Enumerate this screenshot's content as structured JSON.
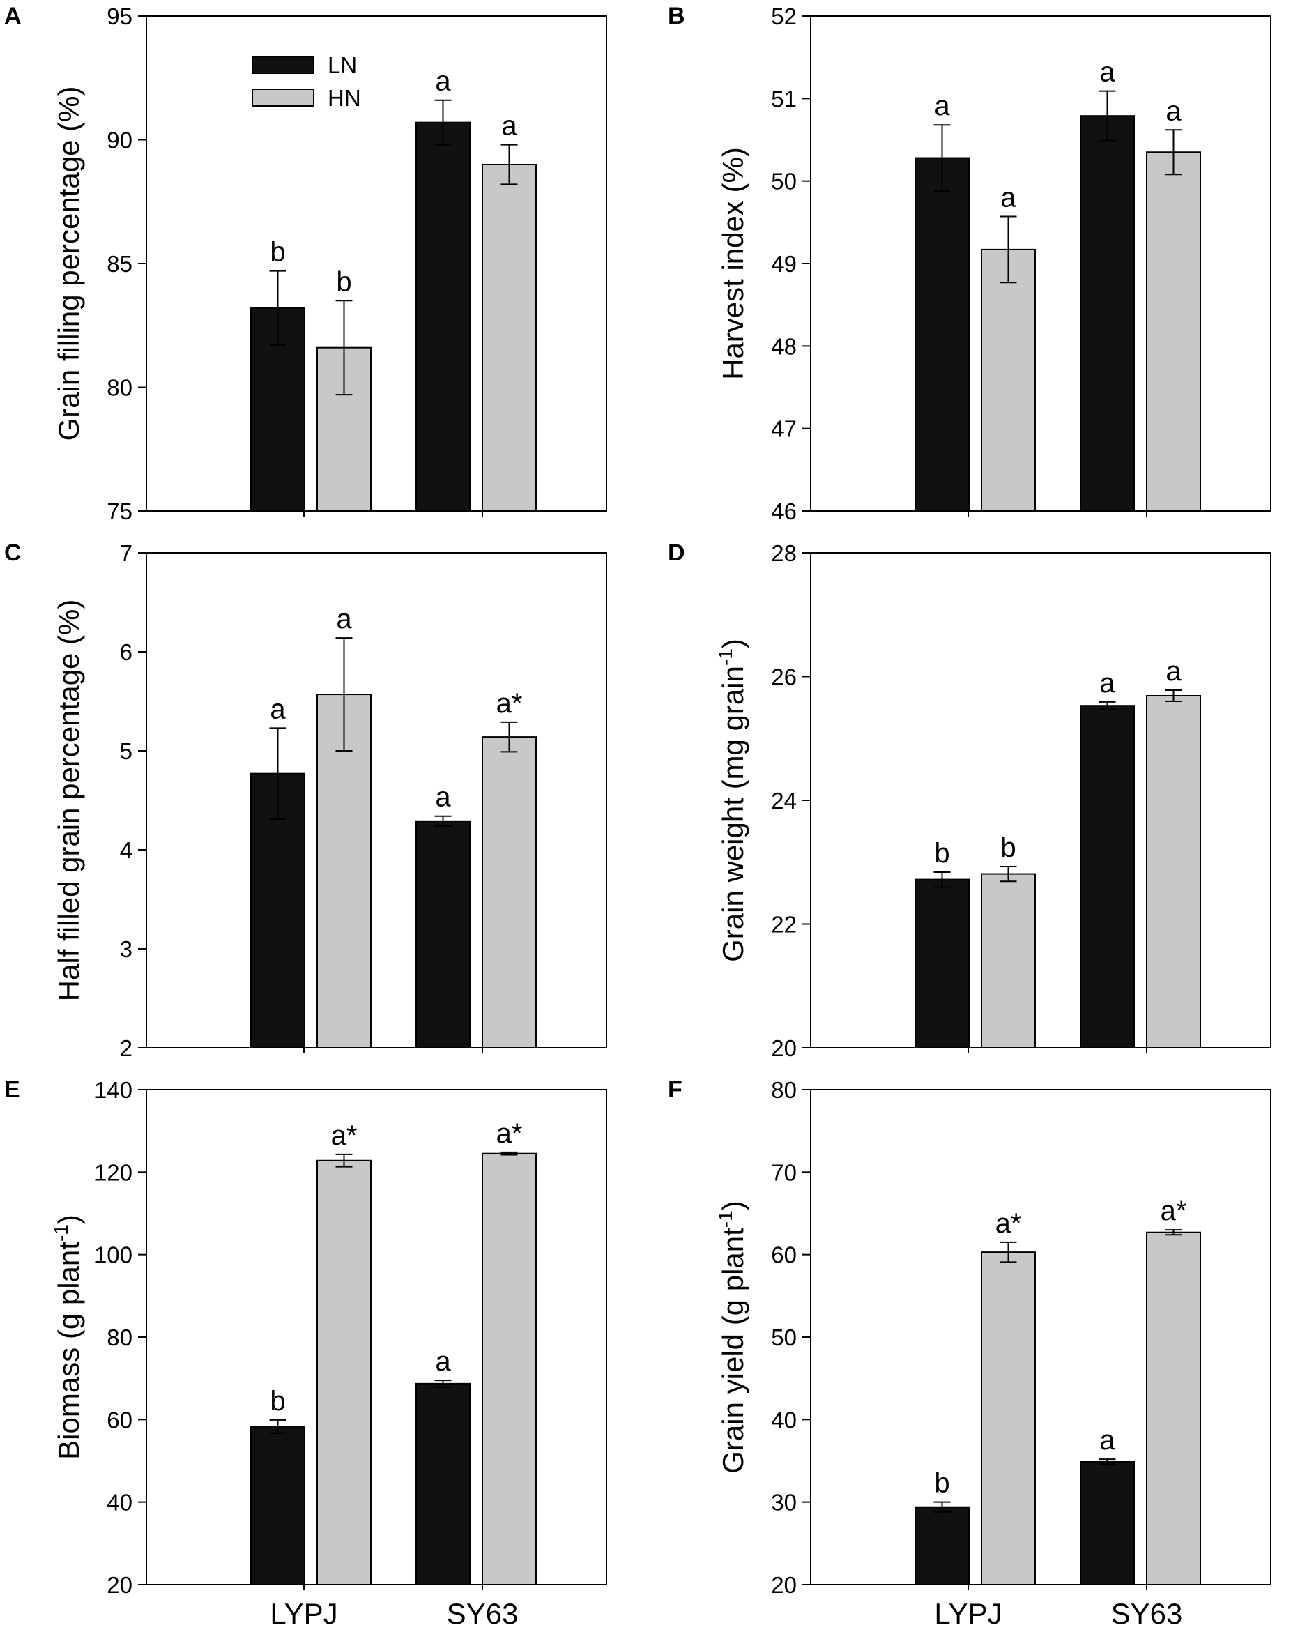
{
  "colors": {
    "LN": "#111111",
    "HN": "#c8c8c8",
    "frame": "#000000"
  },
  "legend": [
    {
      "name": "LN",
      "color": "#111111"
    },
    {
      "name": "HN",
      "color": "#c8c8c8"
    }
  ],
  "chart_data": [
    {
      "panel": "A",
      "type": "bar",
      "categories": [
        "LYPJ",
        "SY63"
      ],
      "ylabel": "Grain filling percentage (%)",
      "ylim": [
        75,
        95
      ],
      "yticks": [
        75,
        80,
        85,
        90,
        95
      ],
      "legend_position": "top-left",
      "series": [
        {
          "name": "LN",
          "values": [
            83.2,
            90.7
          ],
          "errors": [
            1.5,
            0.9
          ],
          "labels": [
            "b",
            "a"
          ]
        },
        {
          "name": "HN",
          "values": [
            81.6,
            89.0
          ],
          "errors": [
            1.9,
            0.8
          ],
          "labels": [
            "b",
            "a"
          ]
        }
      ]
    },
    {
      "panel": "B",
      "type": "bar",
      "categories": [
        "LYPJ",
        "SY63"
      ],
      "ylabel": "Harvest index (%)",
      "ylim": [
        46,
        52
      ],
      "yticks": [
        46,
        47,
        48,
        49,
        50,
        51,
        52
      ],
      "series": [
        {
          "name": "LN",
          "values": [
            50.28,
            50.79
          ],
          "errors": [
            0.4,
            0.3
          ],
          "labels": [
            "a",
            "a"
          ]
        },
        {
          "name": "HN",
          "values": [
            49.17,
            50.35
          ],
          "errors": [
            0.4,
            0.27
          ],
          "labels": [
            "a",
            "a"
          ]
        }
      ]
    },
    {
      "panel": "C",
      "type": "bar",
      "categories": [
        "LYPJ",
        "SY63"
      ],
      "ylabel": "Half filled grain percentage (%)",
      "ylim": [
        2,
        7
      ],
      "yticks": [
        2,
        3,
        4,
        5,
        6,
        7
      ],
      "series": [
        {
          "name": "LN",
          "values": [
            4.77,
            4.29
          ],
          "errors": [
            0.46,
            0.05
          ],
          "labels": [
            "a",
            "a"
          ]
        },
        {
          "name": "HN",
          "values": [
            5.57,
            5.14
          ],
          "errors": [
            0.57,
            0.15
          ],
          "labels": [
            "a",
            "a*"
          ]
        }
      ]
    },
    {
      "panel": "D",
      "type": "bar",
      "categories": [
        "LYPJ",
        "SY63"
      ],
      "ylabel": "Grain weight (mg grain",
      "ylabel_sup": "-1",
      "ylabel_end": ")",
      "ylim": [
        20,
        28
      ],
      "yticks": [
        20,
        22,
        24,
        26,
        28
      ],
      "series": [
        {
          "name": "LN",
          "values": [
            22.72,
            25.53
          ],
          "errors": [
            0.12,
            0.06
          ],
          "labels": [
            "b",
            "a"
          ]
        },
        {
          "name": "HN",
          "values": [
            22.81,
            25.69
          ],
          "errors": [
            0.12,
            0.09
          ],
          "labels": [
            "b",
            "a"
          ]
        }
      ]
    },
    {
      "panel": "E",
      "type": "bar",
      "categories": [
        "LYPJ",
        "SY63"
      ],
      "ylabel": "Biomass (g plant",
      "ylabel_sup": "-1",
      "ylabel_end": ")",
      "ylim": [
        20,
        140
      ],
      "yticks": [
        20,
        40,
        60,
        80,
        100,
        120,
        140
      ],
      "series": [
        {
          "name": "LN",
          "values": [
            58.3,
            68.7
          ],
          "errors": [
            1.6,
            0.8
          ],
          "labels": [
            "b",
            "a"
          ]
        },
        {
          "name": "HN",
          "values": [
            122.8,
            124.5
          ],
          "errors": [
            1.5,
            0.3
          ],
          "labels": [
            "a*",
            "a*"
          ]
        }
      ]
    },
    {
      "panel": "F",
      "type": "bar",
      "categories": [
        "LYPJ",
        "SY63"
      ],
      "ylabel": "Grain yield (g plant",
      "ylabel_sup": "-1",
      "ylabel_end": ")",
      "ylim": [
        20,
        80
      ],
      "yticks": [
        20,
        30,
        40,
        50,
        60,
        70,
        80
      ],
      "series": [
        {
          "name": "LN",
          "values": [
            29.4,
            34.9
          ],
          "errors": [
            0.6,
            0.3
          ],
          "labels": [
            "b",
            "a"
          ]
        },
        {
          "name": "HN",
          "values": [
            60.3,
            62.7
          ],
          "errors": [
            1.2,
            0.3
          ],
          "labels": [
            "a*",
            "a*"
          ]
        }
      ]
    }
  ]
}
